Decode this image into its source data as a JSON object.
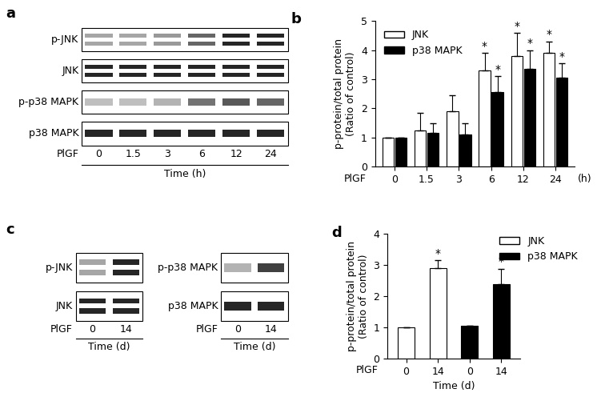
{
  "blots": [
    {
      "panel": "a",
      "groups": [
        {
          "rows": [
            {
              "label": "p-JNK",
              "doublet": true,
              "intensity": [
                0.35,
                0.35,
                0.4,
                0.6,
                0.85,
                0.85
              ]
            },
            {
              "label": "JNK",
              "doublet": true,
              "intensity": [
                0.85,
                0.85,
                0.85,
                0.85,
                0.85,
                0.85
              ]
            },
            {
              "label": "p-p38 MAPK",
              "doublet": false,
              "intensity": [
                0.25,
                0.25,
                0.3,
                0.55,
                0.65,
                0.6
              ]
            },
            {
              "label": "p38 MAPK",
              "doublet": false,
              "intensity": [
                0.85,
                0.85,
                0.85,
                0.85,
                0.85,
                0.85
              ]
            }
          ],
          "lane_title": "PlGF",
          "lanes": [
            "0",
            "1.5",
            "3",
            "6",
            "12",
            "24"
          ],
          "xlabel": "Time (h)"
        }
      ]
    },
    {
      "panel": "c",
      "groups": [
        {
          "rows": [
            {
              "label": "p-JNK",
              "doublet": true,
              "intensity": [
                0.35,
                0.85
              ]
            },
            {
              "label": "JNK",
              "doublet": true,
              "intensity": [
                0.85,
                0.85
              ]
            }
          ],
          "lane_title": "PlGF",
          "lanes": [
            "0",
            "14"
          ],
          "xlabel": "Time (d)"
        },
        {
          "rows": [
            {
              "label": "p-p38 MAPK",
              "doublet": false,
              "intensity": [
                0.3,
                0.75
              ]
            },
            {
              "label": "p38 MAPK",
              "doublet": false,
              "intensity": [
                0.85,
                0.85
              ]
            }
          ],
          "lane_title": "PlGF",
          "lanes": [
            "0",
            "14"
          ],
          "xlabel": "Time (d)"
        }
      ]
    }
  ],
  "chart_data": [
    {
      "type": "bar",
      "title": "b",
      "categories": [
        "0",
        "1.5",
        "3",
        "6",
        "12",
        "24"
      ],
      "annotations": [
        "PlGF",
        "(h)"
      ],
      "y_label": "p-protein/total protein\n(Ratio of control)",
      "series": [
        {
          "name": "JNK",
          "color": "#ffffff",
          "values": [
            1,
            1.25,
            1.9,
            3.3,
            3.8,
            3.9
          ],
          "error": [
            0,
            0.6,
            0.55,
            0.6,
            0.8,
            0.4
          ],
          "marks": [
            null,
            null,
            null,
            "*",
            "*",
            "*"
          ]
        },
        {
          "name": "p38 MAPK",
          "color": "#000000",
          "values": [
            1,
            1.15,
            1.1,
            2.55,
            3.35,
            3.05
          ],
          "error": [
            0,
            0.35,
            0.4,
            0.55,
            0.65,
            0.5
          ],
          "marks": [
            null,
            null,
            null,
            "*",
            "*",
            "*"
          ]
        }
      ],
      "ylim": [
        0,
        5
      ],
      "yticks": [
        0,
        1,
        2,
        3,
        4,
        5
      ],
      "legend": "upper left"
    },
    {
      "type": "bar",
      "title": "d",
      "categories": [
        "0",
        "14",
        "0",
        "14"
      ],
      "annotations": [
        "PlGF"
      ],
      "x_label": "Time (d)",
      "y_label": "p-protein/total protein\n(Ratio of control)",
      "series": [
        {
          "name": "JNK",
          "color": "#ffffff",
          "values": [
            1,
            2.9,
            null,
            null
          ],
          "error": [
            0,
            0.25,
            null,
            null
          ],
          "marks": [
            null,
            "*",
            null,
            null
          ]
        },
        {
          "name": "p38 MAPK",
          "color": "#000000",
          "values": [
            null,
            null,
            1.05,
            2.38
          ],
          "error": [
            null,
            null,
            0,
            0.5
          ],
          "marks": [
            null,
            null,
            null,
            "*"
          ]
        }
      ],
      "ylim": [
        0,
        4
      ],
      "yticks": [
        0,
        1,
        2,
        3,
        4
      ],
      "legend": "upper right"
    }
  ]
}
